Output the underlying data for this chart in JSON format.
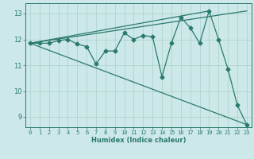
{
  "xlabel": "Humidex (Indice chaleur)",
  "bg_color": "#cce8e8",
  "line_color": "#2a7a6a",
  "grid_color": "#b0d4d0",
  "xlim": [
    -0.5,
    23.5
  ],
  "ylim": [
    8.6,
    13.4
  ],
  "yticks": [
    9,
    10,
    11,
    12,
    13
  ],
  "xticks": [
    0,
    1,
    2,
    3,
    4,
    5,
    6,
    7,
    8,
    9,
    10,
    11,
    12,
    13,
    14,
    15,
    16,
    17,
    18,
    19,
    20,
    21,
    22,
    23
  ],
  "series_main_x": [
    0,
    1,
    2,
    3,
    4,
    5,
    6,
    7,
    8,
    9,
    10,
    11,
    12,
    13,
    14,
    15,
    16,
    17,
    18,
    19,
    20,
    21,
    22,
    23
  ],
  "series_main_y": [
    11.85,
    11.85,
    11.85,
    11.95,
    12.0,
    11.82,
    11.72,
    11.05,
    11.55,
    11.55,
    12.25,
    12.0,
    12.15,
    12.1,
    10.55,
    11.85,
    12.85,
    12.45,
    11.85,
    13.1,
    12.0,
    10.85,
    9.45,
    8.7
  ],
  "line1_x": [
    0,
    23
  ],
  "line1_y": [
    11.85,
    13.1
  ],
  "line2_x": [
    0,
    19
  ],
  "line2_y": [
    11.85,
    13.1
  ],
  "line3_x": [
    0,
    23
  ],
  "line3_y": [
    11.85,
    8.7
  ],
  "marker": "D",
  "marker_size": 2.5,
  "linewidth": 0.9
}
